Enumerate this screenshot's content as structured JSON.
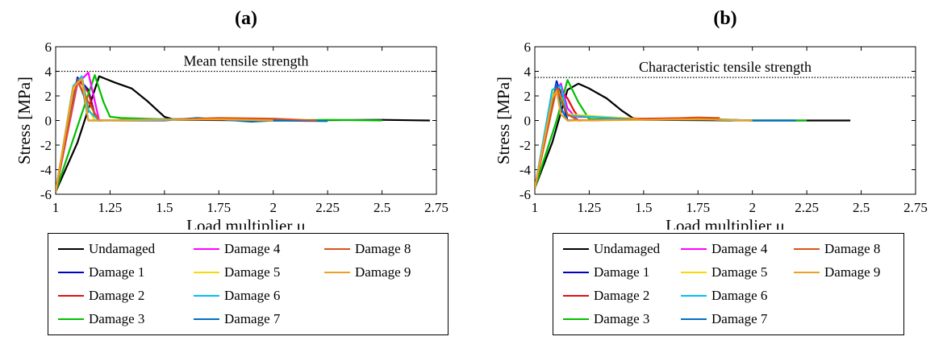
{
  "chart_data": [
    {
      "type": "line",
      "panel_label": "(a)",
      "xlabel": "Load multiplier μ",
      "ylabel": "Stress [MPa]",
      "xlim": [
        1,
        2.75
      ],
      "ylim": [
        -6,
        6
      ],
      "xticks": [
        "1",
        "1.25",
        "1.5",
        "1.75",
        "2",
        "2.25",
        "2.5",
        "2.75"
      ],
      "yticks": [
        "-6",
        "-4",
        "-2",
        "0",
        "2",
        "4",
        "6"
      ],
      "reference_line": {
        "label": "Mean tensile strength",
        "y": 4.0
      },
      "legend": "below",
      "series": [
        {
          "name": "Undamaged",
          "color": "#000000",
          "x": [
            1,
            1.1,
            1.2,
            1.27,
            1.35,
            1.42,
            1.5,
            1.55,
            2.0,
            2.5,
            2.72
          ],
          "y": [
            -5.8,
            -1.8,
            3.6,
            3.1,
            2.6,
            1.6,
            0.3,
            0.05,
            0.0,
            0.05,
            0.0
          ]
        },
        {
          "name": "Damage 1",
          "color": "#0000cc",
          "x": [
            1,
            1.1,
            1.15,
            1.18,
            1.2,
            1.5,
            1.75,
            2.0,
            2.2
          ],
          "y": [
            -5.8,
            3.5,
            2.5,
            0.5,
            0.0,
            0.1,
            0.1,
            0.0,
            0.0
          ]
        },
        {
          "name": "Damage 2",
          "color": "#e01010",
          "x": [
            1,
            1.1,
            1.15,
            1.18,
            1.2,
            1.5,
            1.75,
            2.0,
            2.2
          ],
          "y": [
            -5.8,
            3.4,
            2.3,
            0.4,
            0.0,
            0.1,
            0.15,
            0.05,
            0.0
          ]
        },
        {
          "name": "Damage 3",
          "color": "#00c000",
          "x": [
            1,
            1.1,
            1.18,
            1.22,
            1.25,
            1.3,
            1.5,
            1.75,
            2.0,
            2.25,
            2.5
          ],
          "y": [
            -5.8,
            -0.5,
            3.7,
            1.5,
            0.3,
            0.2,
            0.1,
            0.15,
            0.0,
            0.05,
            0.0
          ]
        },
        {
          "name": "Damage 4",
          "color": "#ff00ff",
          "x": [
            1,
            1.1,
            1.15,
            1.2,
            1.5,
            1.75,
            2.0
          ],
          "y": [
            -5.8,
            3.0,
            3.9,
            0.0,
            0.1,
            0.1,
            0.0
          ]
        },
        {
          "name": "Damage 5",
          "color": "#ffd700",
          "x": [
            1,
            1.08,
            1.12,
            1.15,
            1.18,
            1.5,
            1.75,
            2.0
          ],
          "y": [
            -5.8,
            2.5,
            3.6,
            1.0,
            0.0,
            0.1,
            0.1,
            0.0
          ]
        },
        {
          "name": "Damage 6",
          "color": "#00c0f0",
          "x": [
            1,
            1.08,
            1.12,
            1.15,
            1.2,
            1.5,
            1.75,
            2.0
          ],
          "y": [
            -5.8,
            2.8,
            3.6,
            0.8,
            0.0,
            0.1,
            0.15,
            0.0
          ]
        },
        {
          "name": "Damage 7",
          "color": "#0070c0",
          "x": [
            1,
            1.1,
            1.13,
            1.15,
            1.5,
            1.65,
            1.75,
            1.9,
            2.0,
            2.25
          ],
          "y": [
            -5.8,
            3.3,
            2.0,
            0.0,
            0.0,
            0.2,
            0.1,
            -0.1,
            0.0,
            -0.05
          ]
        },
        {
          "name": "Damage 8",
          "color": "#d95319",
          "x": [
            1,
            1.1,
            1.15,
            1.2,
            1.5,
            1.75,
            2.0,
            2.2
          ],
          "y": [
            -5.8,
            3.2,
            1.5,
            0.0,
            0.05,
            0.2,
            0.15,
            0.0
          ]
        },
        {
          "name": "Damage 9",
          "color": "#f0a020",
          "x": [
            1,
            1.08,
            1.12,
            1.15,
            1.5,
            1.75,
            2.0
          ],
          "y": [
            -5.8,
            2.7,
            3.4,
            0.0,
            0.05,
            0.1,
            0.0
          ]
        }
      ]
    },
    {
      "type": "line",
      "panel_label": "(b)",
      "xlabel": "Load multiplier μ",
      "ylabel": "Stress [MPa]",
      "xlim": [
        1,
        2.75
      ],
      "ylim": [
        -6,
        6
      ],
      "xticks": [
        "1",
        "1.25",
        "1.5",
        "1.75",
        "2",
        "2.25",
        "2.5",
        "2.75"
      ],
      "yticks": [
        "-6",
        "-4",
        "-2",
        "0",
        "2",
        "4",
        "6"
      ],
      "reference_line": {
        "label": "Characteristic tensile strength",
        "y": 3.5
      },
      "legend": "below",
      "series": [
        {
          "name": "Undamaged",
          "color": "#000000",
          "x": [
            1,
            1.08,
            1.15,
            1.2,
            1.25,
            1.33,
            1.4,
            1.45,
            1.5,
            2.0,
            2.45
          ],
          "y": [
            -5.5,
            -1.8,
            2.5,
            3.0,
            2.6,
            1.8,
            0.8,
            0.2,
            0.05,
            0.0,
            0.0
          ]
        },
        {
          "name": "Damage 1",
          "color": "#0000cc",
          "x": [
            1,
            1.1,
            1.13,
            1.15,
            1.5,
            1.75,
            2.0
          ],
          "y": [
            -5.5,
            3.2,
            1.5,
            0.0,
            0.1,
            0.1,
            0.0
          ]
        },
        {
          "name": "Damage 2",
          "color": "#e01010",
          "x": [
            1,
            1.1,
            1.15,
            1.18,
            1.2,
            1.5,
            1.75
          ],
          "y": [
            -5.5,
            2.8,
            1.8,
            0.8,
            0.3,
            0.15,
            0.2
          ]
        },
        {
          "name": "Damage 3",
          "color": "#00c000",
          "x": [
            1,
            1.1,
            1.15,
            1.2,
            1.25,
            1.5,
            1.75,
            2.0,
            2.25
          ],
          "y": [
            -5.5,
            0.0,
            3.3,
            1.5,
            0.1,
            0.05,
            0.15,
            0.0,
            0.0
          ]
        },
        {
          "name": "Damage 4",
          "color": "#ff00ff",
          "x": [
            1,
            1.08,
            1.12,
            1.15,
            1.2,
            1.5,
            1.75
          ],
          "y": [
            -5.5,
            2.0,
            3.0,
            1.0,
            0.0,
            0.1,
            0.1
          ]
        },
        {
          "name": "Damage 5",
          "color": "#ffd700",
          "x": [
            1,
            1.08,
            1.1,
            1.15,
            1.5,
            1.75,
            2.0
          ],
          "y": [
            -5.5,
            2.0,
            2.8,
            0.5,
            0.1,
            0.1,
            0.0
          ]
        },
        {
          "name": "Damage 6",
          "color": "#00c0f0",
          "x": [
            1,
            1.08,
            1.12,
            1.15,
            1.5,
            1.75,
            2.0
          ],
          "y": [
            -5.5,
            2.5,
            2.8,
            0.4,
            0.05,
            0.1,
            0.0
          ]
        },
        {
          "name": "Damage 7",
          "color": "#0070c0",
          "x": [
            1,
            1.1,
            1.12,
            1.15,
            1.5,
            1.75,
            2.0,
            2.2
          ],
          "y": [
            -5.5,
            3.0,
            1.0,
            0.0,
            0.1,
            0.1,
            0.0,
            0.0
          ]
        },
        {
          "name": "Damage 8",
          "color": "#d95319",
          "x": [
            1,
            1.1,
            1.15,
            1.2,
            1.5,
            1.75,
            1.85
          ],
          "y": [
            -5.5,
            2.6,
            0.5,
            0.0,
            0.1,
            0.25,
            0.2
          ]
        },
        {
          "name": "Damage 9",
          "color": "#f0a020",
          "x": [
            1,
            1.08,
            1.1,
            1.12,
            1.15,
            1.5,
            1.75,
            2.0
          ],
          "y": [
            -5.5,
            1.8,
            2.4,
            0.5,
            0.0,
            0.05,
            0.1,
            0.0
          ]
        }
      ]
    }
  ]
}
